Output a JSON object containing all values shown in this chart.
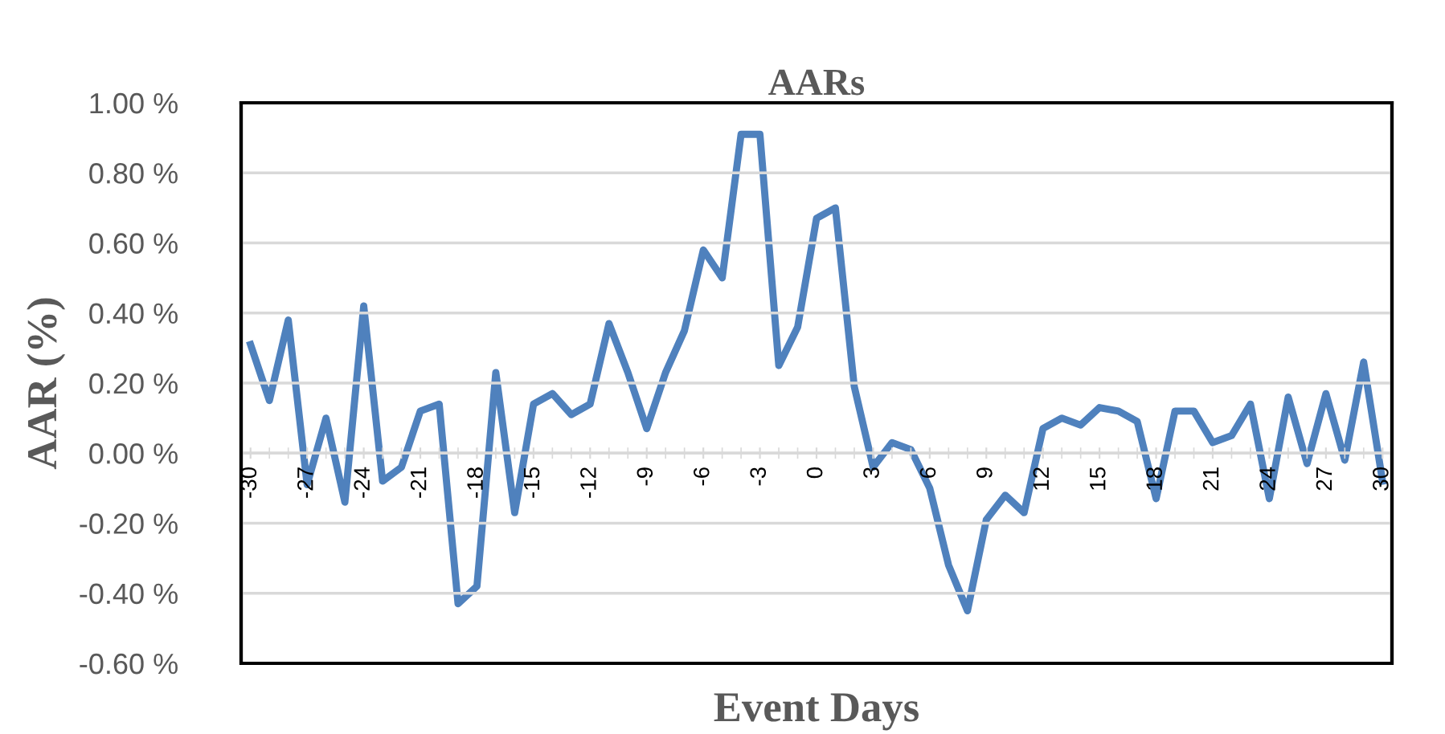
{
  "chart_data": {
    "type": "line",
    "title": "AARs",
    "xlabel": "Event Days",
    "ylabel": "AAR (%)",
    "x": [
      -30,
      -29,
      -28,
      -27,
      -26,
      -25,
      -24,
      -23,
      -22,
      -21,
      -20,
      -19,
      -18,
      -17,
      -16,
      -15,
      -14,
      -13,
      -12,
      -11,
      -10,
      -9,
      -8,
      -7,
      -6,
      -5,
      -4,
      -3,
      -2,
      -1,
      0,
      1,
      2,
      3,
      4,
      5,
      6,
      7,
      8,
      9,
      10,
      11,
      12,
      13,
      14,
      15,
      16,
      17,
      18,
      19,
      20,
      21,
      22,
      23,
      24,
      25,
      26,
      27,
      28,
      29,
      30
    ],
    "series": [
      {
        "color": "#4f81bd",
        "values": [
          0.31,
          0.15,
          0.38,
          -0.09,
          0.1,
          -0.14,
          0.42,
          -0.08,
          -0.04,
          0.12,
          0.14,
          -0.43,
          -0.38,
          0.23,
          -0.17,
          0.14,
          0.17,
          0.11,
          0.14,
          0.37,
          0.23,
          0.07,
          0.23,
          0.35,
          0.58,
          0.5,
          0.91,
          0.91,
          0.25,
          0.36,
          0.67,
          0.7,
          0.19,
          -0.04,
          0.03,
          0.01,
          -0.1,
          -0.32,
          -0.45,
          -0.19,
          -0.12,
          -0.17,
          0.07,
          0.1,
          0.08,
          0.13,
          0.12,
          0.09,
          -0.13,
          0.12,
          0.12,
          0.03,
          0.05,
          0.14,
          -0.13,
          0.16,
          -0.03,
          0.17,
          -0.02,
          0.26,
          -0.08
        ]
      }
    ],
    "xlim": [
      -30.5,
      30.5
    ],
    "xticks": [
      -30,
      -27,
      -24,
      -21,
      -18,
      -15,
      -12,
      -9,
      -6,
      -3,
      0,
      3,
      6,
      9,
      12,
      15,
      18,
      21,
      24,
      27,
      30
    ],
    "ylim": [
      -0.6,
      1.0
    ],
    "yticks": [
      {
        "value": -0.6,
        "label": "-0.60 %"
      },
      {
        "value": -0.4,
        "label": "-0.40 %"
      },
      {
        "value": -0.2,
        "label": "-0.20 %"
      },
      {
        "value": 0,
        "label": "0.00 %"
      },
      {
        "value": 0.2,
        "label": "0.20 %"
      },
      {
        "value": 0.4,
        "label": "0.40 %"
      },
      {
        "value": 0.6,
        "label": "0.60 %"
      },
      {
        "value": 0.8,
        "label": "0.80 %"
      },
      {
        "value": 1.0,
        "label": "1.00 %"
      }
    ],
    "grid": "y",
    "marker": "none",
    "line_style": "solid",
    "legend": false
  }
}
